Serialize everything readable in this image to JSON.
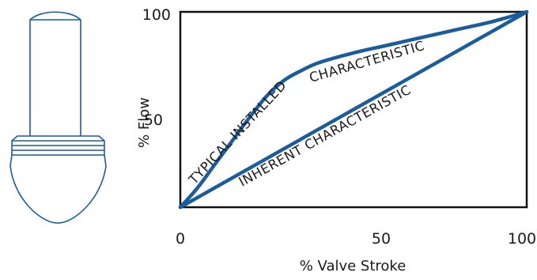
{
  "chart_data": {
    "type": "line",
    "xlabel": "% Valve Stroke",
    "ylabel": "% Flow",
    "xlim": [
      0,
      100
    ],
    "ylim": [
      0,
      100
    ],
    "x_ticks": [
      "0",
      "50",
      "100"
    ],
    "y_ticks": [
      "50",
      "100"
    ],
    "grid": false,
    "series": [
      {
        "name": "INHERENT CHARACTERISTIC",
        "x": [
          0,
          100
        ],
        "y": [
          0,
          100
        ]
      },
      {
        "name": "TYPICAL INSTALLED CHARACTERISTIC",
        "x": [
          0,
          5,
          10,
          15,
          20,
          25,
          30,
          35,
          40,
          50,
          60,
          70,
          80,
          90,
          100
        ],
        "y": [
          0,
          10,
          22,
          34,
          46,
          57,
          65,
          70,
          74,
          79,
          83,
          87,
          91,
          95,
          100
        ]
      }
    ],
    "colors": {
      "series": "#1a5c9e",
      "axes": "#111111"
    }
  }
}
